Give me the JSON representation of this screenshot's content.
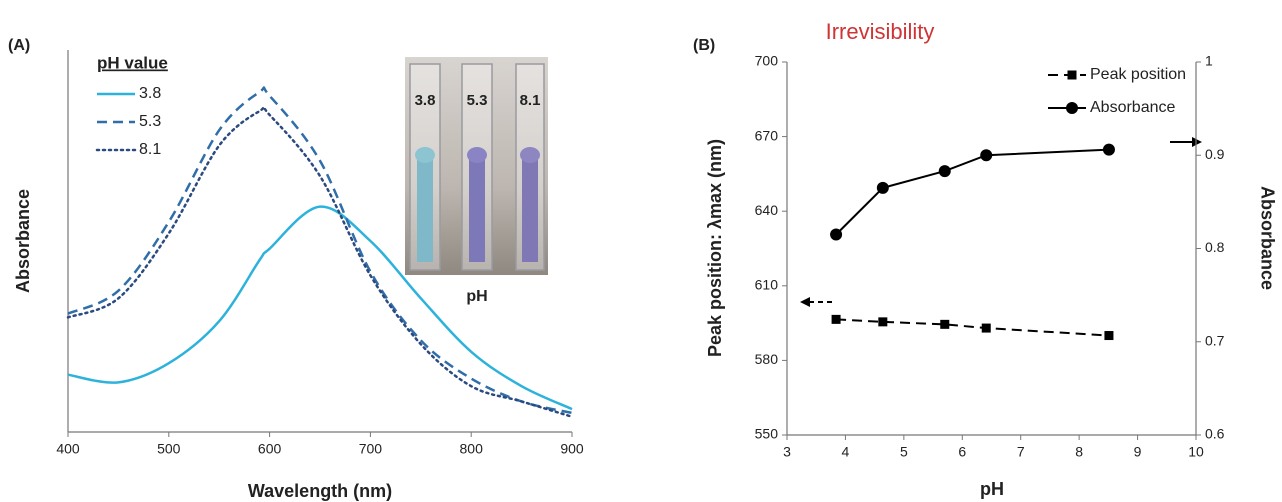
{
  "chart_data": [
    {
      "type": "line",
      "panel_label": "(A)",
      "xlabel": "Wavelength (nm)",
      "ylabel": "Absorbance",
      "x": [
        400,
        450,
        500,
        550,
        590,
        600,
        650,
        700,
        750,
        800,
        850,
        900
      ],
      "xlim": [
        400,
        900
      ],
      "xticks": [
        400,
        500,
        600,
        700,
        800,
        900
      ],
      "ylim": [
        0,
        1
      ],
      "legend_title": "pH value",
      "legend": "upper left",
      "series": [
        {
          "name": "3.8",
          "color": "#2db2dc",
          "style": "solid",
          "values": [
            0.15,
            0.13,
            0.18,
            0.29,
            0.45,
            0.48,
            0.59,
            0.5,
            0.35,
            0.21,
            0.12,
            0.06
          ]
        },
        {
          "name": "5.3",
          "color": "#2f6ea8",
          "style": "dashed",
          "values": [
            0.31,
            0.37,
            0.55,
            0.79,
            0.89,
            0.88,
            0.71,
            0.42,
            0.24,
            0.14,
            0.08,
            0.05
          ]
        },
        {
          "name": "8.1",
          "color": "#2a4a80",
          "style": "dotted",
          "values": [
            0.3,
            0.35,
            0.52,
            0.75,
            0.84,
            0.83,
            0.67,
            0.41,
            0.23,
            0.12,
            0.08,
            0.04
          ]
        }
      ],
      "inset": {
        "labels": [
          "3.8",
          "5.3",
          "8.1"
        ],
        "caption": "pH"
      }
    },
    {
      "type": "line",
      "panel_label": "(B)",
      "title": "Irrevisibility",
      "xlabel": "pH",
      "ylabel": "Peak position: λmax (nm)",
      "y2label": "Absorbance",
      "x": [
        3.84,
        4.64,
        5.7,
        6.41,
        8.51
      ],
      "xlim": [
        3,
        10
      ],
      "xticks": [
        3,
        4,
        5,
        6,
        7,
        8,
        9,
        10
      ],
      "ylim": [
        550,
        700
      ],
      "yticks": [
        550,
        580,
        610,
        640,
        670,
        700
      ],
      "y2lim": [
        0.6,
        1
      ],
      "y2ticks": [
        0.6,
        0.7,
        0.8,
        0.9,
        1
      ],
      "legend": "upper right",
      "series": [
        {
          "name": "Peak position",
          "color": "#000000",
          "style": "dashed",
          "marker": "square",
          "values": [
            596.5,
            595.5,
            594.5,
            593,
            590
          ]
        },
        {
          "name": "Absorbance",
          "color": "#000000",
          "style": "solid",
          "marker": "circle",
          "axis": "y2",
          "values": [
            0.815,
            0.865,
            0.883,
            0.9,
            0.906
          ]
        }
      ]
    }
  ]
}
